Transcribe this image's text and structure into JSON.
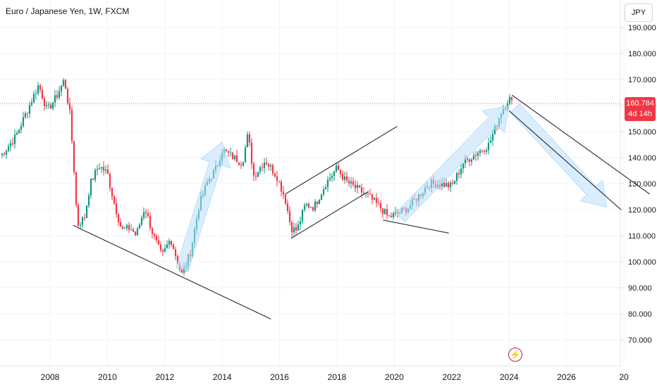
{
  "header": {
    "title": "Euro / Japanese Yen, 1W, FXCM",
    "currency_button": "JPY"
  },
  "last_price": {
    "value": "160.784",
    "countdown": "4d 14h",
    "color": "#f23645"
  },
  "colors": {
    "up": "#089981",
    "down": "#f23645",
    "drawing": "#131722",
    "arrow_fill": "#bbdefb"
  },
  "icons": {
    "event": "lightning-icon"
  },
  "chart_data": {
    "type": "candlestick",
    "title": "Euro / Japanese Yen, 1W, FXCM",
    "yaxis": {
      "ticks": [
        "190.000",
        "180.000",
        "170.000",
        "160.000",
        "150.000",
        "140.000",
        "130.000",
        "120.000",
        "110.000",
        "100.000",
        "90.000",
        "80.000",
        "70.000"
      ],
      "ylim": [
        60,
        195
      ]
    },
    "xaxis": {
      "ticks": [
        "2008",
        "2010",
        "2012",
        "2014",
        "2016",
        "2018",
        "2020",
        "2022",
        "2024",
        "2026",
        "20"
      ]
    },
    "price_path": [
      [
        "2006.3",
        141
      ],
      [
        "2006.8",
        148
      ],
      [
        "2007.2",
        158
      ],
      [
        "2007.6",
        168
      ],
      [
        "2007.9",
        158
      ],
      [
        "2008.2",
        163
      ],
      [
        "2008.5",
        170
      ],
      [
        "2008.7",
        156
      ],
      [
        "2008.85",
        133
      ],
      [
        "2008.95",
        114
      ],
      [
        "2009.2",
        117
      ],
      [
        "2009.4",
        130
      ],
      [
        "2009.7",
        137
      ],
      [
        "2010.0",
        134
      ],
      [
        "2010.2",
        124
      ],
      [
        "2010.5",
        112
      ],
      [
        "2010.8",
        113
      ],
      [
        "2011.0",
        110
      ],
      [
        "2011.3",
        121
      ],
      [
        "2011.6",
        110
      ],
      [
        "2011.9",
        102
      ],
      [
        "2012.2",
        109
      ],
      [
        "2012.5",
        98
      ],
      [
        "2012.6",
        95
      ],
      [
        "2012.9",
        104
      ],
      [
        "2013.2",
        122
      ],
      [
        "2013.5",
        131
      ],
      [
        "2013.8",
        136
      ],
      [
        "2014.0",
        143
      ],
      [
        "2014.4",
        140
      ],
      [
        "2014.7",
        138
      ],
      [
        "2014.9",
        149
      ],
      [
        "2015.1",
        133
      ],
      [
        "2015.5",
        139
      ],
      [
        "2015.9",
        133
      ],
      [
        "2016.2",
        124
      ],
      [
        "2016.4",
        113
      ],
      [
        "2016.6",
        112
      ],
      [
        "2016.9",
        122
      ],
      [
        "2017.2",
        121
      ],
      [
        "2017.6",
        130
      ],
      [
        "2018.0",
        136
      ],
      [
        "2018.3",
        131
      ],
      [
        "2018.7",
        128
      ],
      [
        "2019.1",
        125
      ],
      [
        "2019.5",
        121
      ],
      [
        "2019.8",
        117
      ],
      [
        "2020.2",
        119
      ],
      [
        "2020.5",
        121
      ],
      [
        "2020.9",
        126
      ],
      [
        "2021.2",
        130
      ],
      [
        "2021.6",
        130
      ],
      [
        "2022.0",
        129
      ],
      [
        "2022.4",
        138
      ],
      [
        "2022.9",
        142
      ],
      [
        "2023.3",
        145
      ],
      [
        "2023.7",
        157
      ],
      [
        "2024.0",
        163
      ],
      [
        "2024.1",
        160.8
      ]
    ],
    "drawings": {
      "trend_lines": [
        [
          [
            "2008.8",
            114
          ],
          [
            "2015.7",
            78
          ]
        ],
        [
          [
            "2016.2",
            126
          ],
          [
            "2020.1",
            152
          ]
        ],
        [
          [
            "2016.4",
            109
          ],
          [
            "2019.1",
            127
          ]
        ],
        [
          [
            "2019.6",
            116
          ],
          [
            "2021.9",
            111
          ]
        ],
        [
          [
            "2024.1",
            164
          ],
          [
            "2028.9",
            126
          ]
        ],
        [
          [
            "2024.0",
            158
          ],
          [
            "2027.9",
            120
          ]
        ]
      ],
      "arrows": [
        [
          [
            "2012.6",
            97
          ],
          [
            "2014.0",
            146
          ]
        ],
        [
          [
            "2020.2",
            117
          ],
          [
            "2024.0",
            160
          ]
        ],
        [
          [
            "2024.2",
            159
          ],
          [
            "2027.4",
            121
          ]
        ]
      ]
    }
  }
}
